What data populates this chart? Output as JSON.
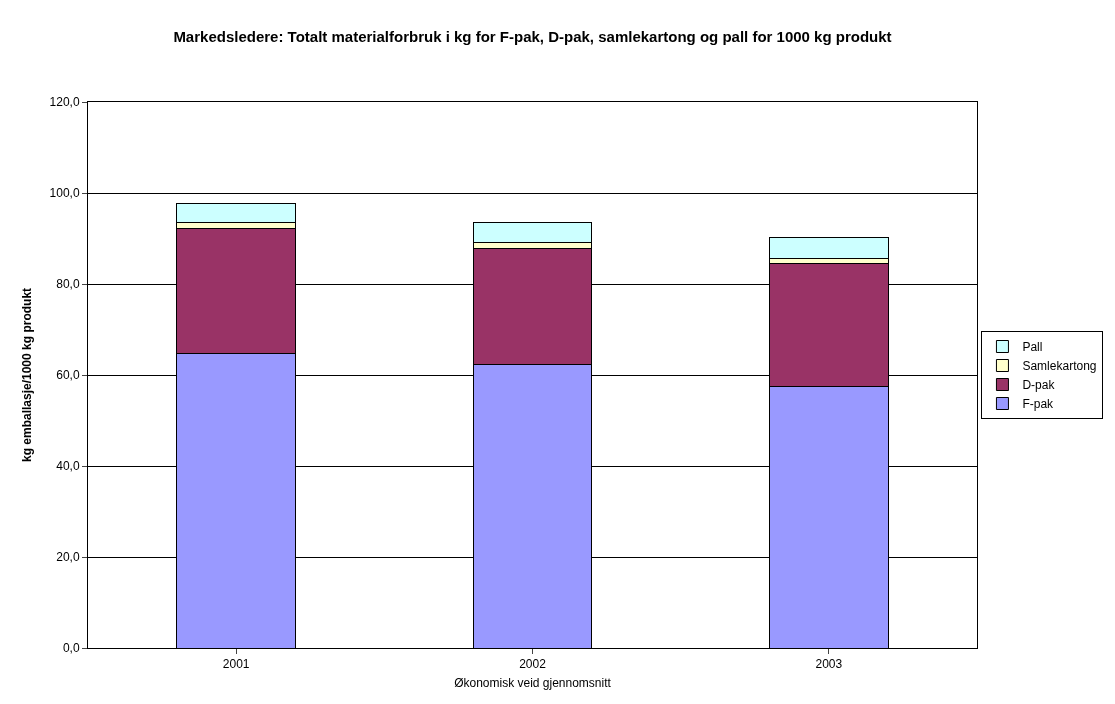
{
  "chart_data": {
    "type": "bar",
    "stacked": true,
    "title": "Markedsledere: Totalt materialforbruk i kg for F-pak, D-pak, samlekartong og pall for 1000 kg produkt",
    "xlabel": "Økonomisk veid gjennomsnitt",
    "ylabel": "kg emballasje/1000 kg produkt",
    "categories": [
      "2001",
      "2002",
      "2003"
    ],
    "series": [
      {
        "name": "F-pak",
        "color": "#9999ff",
        "values": [
          64.8,
          62.3,
          57.5
        ]
      },
      {
        "name": "D-pak",
        "color": "#993366",
        "values": [
          27.4,
          25.4,
          27.0
        ]
      },
      {
        "name": "Samlekartong",
        "color": "#ffffcc",
        "values": [
          1.4,
          1.5,
          1.2
        ]
      },
      {
        "name": "Pall",
        "color": "#ccffff",
        "values": [
          4.1,
          4.3,
          4.5
        ]
      }
    ],
    "ylim": [
      0,
      120
    ],
    "yticks": [
      {
        "value": 0,
        "label": "0,0"
      },
      {
        "value": 20,
        "label": "20,0"
      },
      {
        "value": 40,
        "label": "40,0"
      },
      {
        "value": 60,
        "label": "60,0"
      },
      {
        "value": 80,
        "label": "80,0"
      },
      {
        "value": 100,
        "label": "100,0"
      },
      {
        "value": 120,
        "label": "120,0"
      }
    ],
    "grid": "y",
    "legend": "right"
  }
}
